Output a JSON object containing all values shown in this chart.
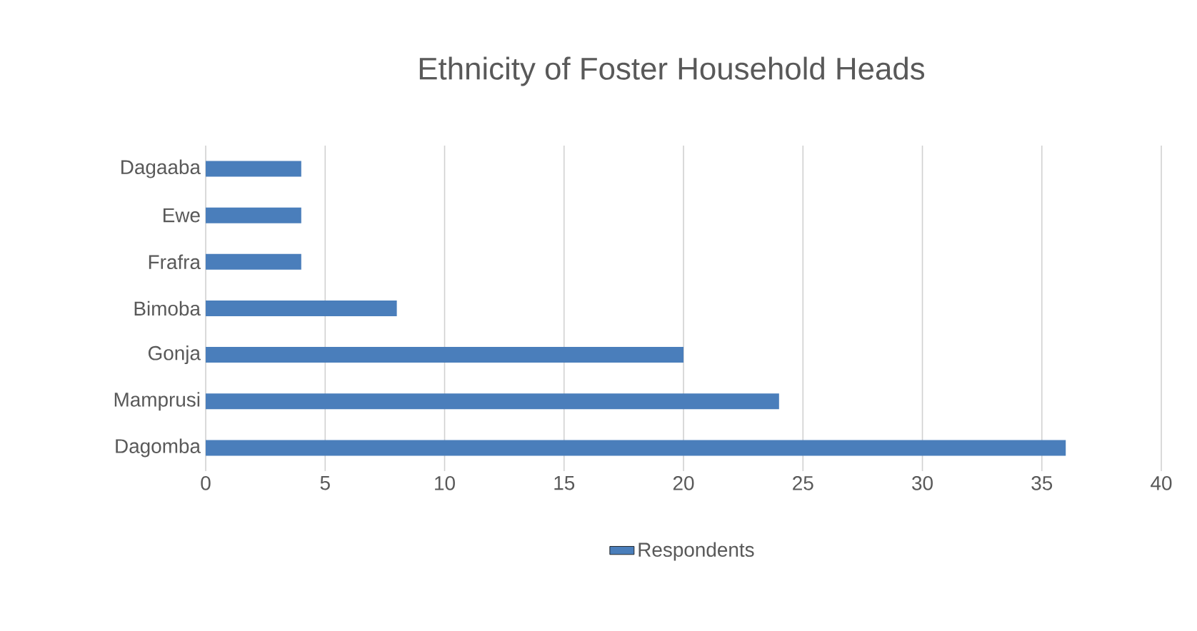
{
  "chart_data": {
    "type": "bar",
    "orientation": "horizontal",
    "title": "Ethnicity of Foster Household Heads",
    "categories": [
      "Dagaaba",
      "Ewe",
      "Frafra",
      "Bimoba",
      "Gonja",
      "Mamprusi",
      "Dagomba"
    ],
    "series": [
      {
        "name": "Respondents",
        "color": "#4a7ebb",
        "values": [
          4,
          4,
          4,
          8,
          20,
          24,
          36
        ]
      }
    ],
    "xlim": [
      0,
      40
    ],
    "xticks": [
      0,
      5,
      10,
      15,
      20,
      25,
      30,
      35,
      40
    ],
    "grid": "x",
    "legend": "bottom"
  }
}
